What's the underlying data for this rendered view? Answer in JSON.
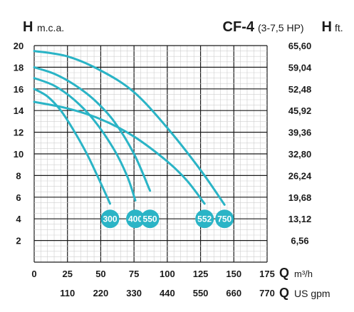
{
  "chart_data": {
    "type": "line",
    "title": "CF-4",
    "subtitle": "(3-7,5 HP)",
    "y_left_symbol": "H",
    "y_left_unit": "m.c.a.",
    "y_right_symbol": "H",
    "y_right_unit": "ft.",
    "x_symbol_1": "Q",
    "x_unit_1": "m³/h",
    "x_symbol_2": "Q",
    "x_unit_2": "US gpm",
    "xlim": [
      0,
      175
    ],
    "ylim": [
      0,
      20
    ],
    "grid": true,
    "y_ticks": [
      2,
      4,
      6,
      8,
      10,
      12,
      14,
      16,
      18,
      20
    ],
    "y_ticks_right": [
      "6,56",
      "13,12",
      "19,68",
      "26,24",
      "32,80",
      "39,36",
      "45,92",
      "52,48",
      "59,04",
      "65,60"
    ],
    "x_ticks": [
      0,
      25,
      50,
      75,
      100,
      125,
      150,
      175
    ],
    "x_ticks_gpm": [
      110,
      220,
      330,
      440,
      550,
      660,
      770
    ],
    "accent_color": "#2ab4c6",
    "series": [
      {
        "name": "300",
        "x": [
          0,
          10,
          20,
          30,
          40,
          50,
          57
        ],
        "y": [
          16.0,
          15.3,
          14.0,
          12.1,
          9.9,
          7.3,
          5.4
        ]
      },
      {
        "name": "400",
        "x": [
          0,
          15,
          30,
          45,
          60,
          70,
          76
        ],
        "y": [
          17.0,
          16.3,
          15.0,
          13.1,
          10.4,
          7.9,
          5.7
        ]
      },
      {
        "name": "550",
        "x": [
          0,
          15,
          30,
          45,
          60,
          75,
          87
        ],
        "y": [
          18.0,
          17.4,
          16.4,
          15.0,
          13.0,
          10.0,
          6.6
        ]
      },
      {
        "name": "552",
        "x": [
          0,
          25,
          50,
          75,
          100,
          115,
          128
        ],
        "y": [
          14.8,
          14.2,
          13.2,
          11.6,
          9.3,
          7.5,
          5.4
        ]
      },
      {
        "name": "750",
        "x": [
          0,
          25,
          50,
          75,
          100,
          125,
          143
        ],
        "y": [
          19.5,
          19.0,
          17.7,
          15.7,
          12.4,
          8.5,
          5.3
        ]
      }
    ],
    "labels_y": 4
  }
}
